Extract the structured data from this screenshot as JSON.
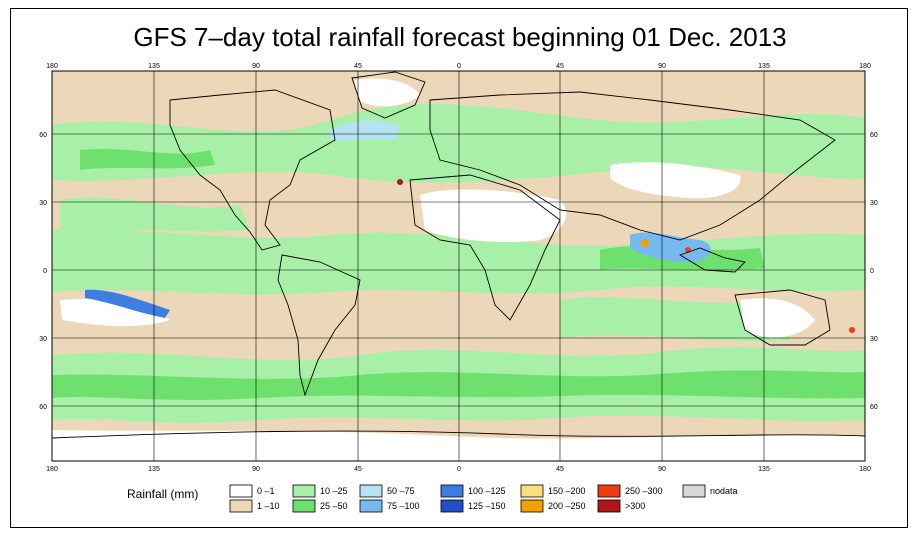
{
  "title": "GFS 7–day total rainfall forecast beginning 01 Dec. 2013",
  "map": {
    "longitude_ticks": [
      "180",
      "135",
      "90",
      "45",
      "0",
      "45",
      "90",
      "135",
      "180"
    ],
    "latitude_ticks": [
      "60",
      "30",
      "0",
      "30",
      "60"
    ]
  },
  "legend": {
    "title": "Rainfall (mm)",
    "entries": [
      {
        "label": "0 –1",
        "color": "#ffffff"
      },
      {
        "label": "1 –10",
        "color": "#ecd8b8"
      },
      {
        "label": "10 –25",
        "color": "#a8f0a8"
      },
      {
        "label": "25 –50",
        "color": "#6ee06e"
      },
      {
        "label": "50 –75",
        "color": "#b4e4f4"
      },
      {
        "label": "75 –100",
        "color": "#78b8f0"
      },
      {
        "label": "100 –125",
        "color": "#3c7fe0"
      },
      {
        "label": "125 –150",
        "color": "#2050c8"
      },
      {
        "label": "150 –200",
        "color": "#fce07c"
      },
      {
        "label": "200 –250",
        "color": "#f4a000"
      },
      {
        "label": "250 –300",
        "color": "#f03c10"
      },
      {
        "label": ">300",
        "color": "#b01818"
      },
      {
        "label": "nodata",
        "color": "#d8d8d8"
      }
    ]
  }
}
